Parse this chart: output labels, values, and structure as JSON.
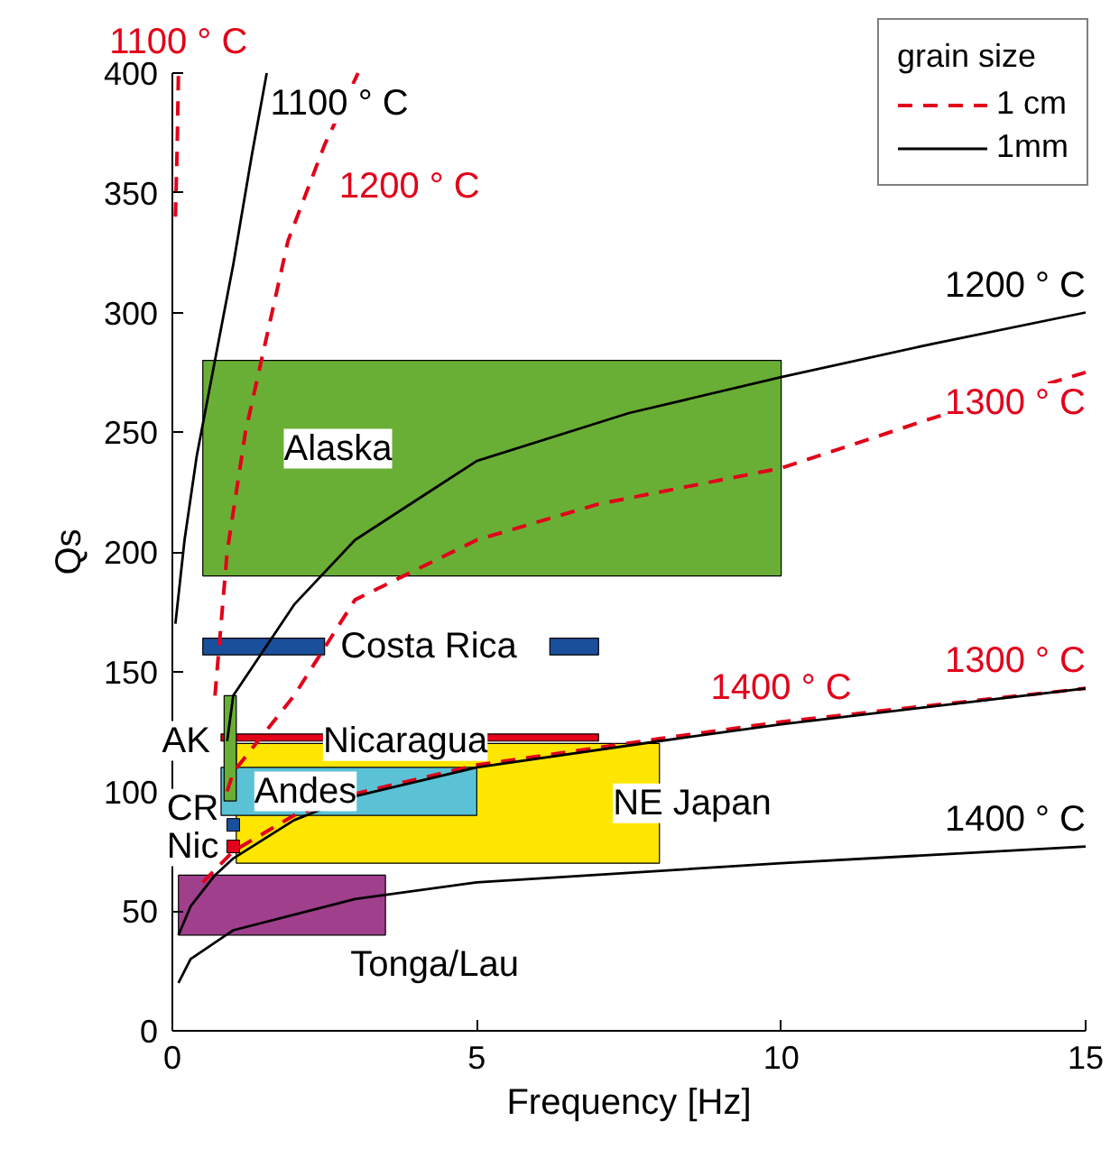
{
  "chart_data": {
    "type": "line",
    "xlabel": "Frequency [Hz]",
    "ylabel": "Qs",
    "xlim": [
      0,
      15
    ],
    "ylim": [
      0,
      400
    ],
    "xticks": [
      0,
      5,
      10,
      15
    ],
    "yticks": [
      0,
      50,
      100,
      150,
      200,
      250,
      300,
      350,
      400
    ],
    "legend": "top right",
    "legend_title": "grain size",
    "marker": "none",
    "series": [
      {
        "type": "area",
        "name": "Alaska",
        "color": "#6aaf35",
        "x": [
          0.5,
          10,
          10,
          0.5
        ],
        "values": [
          280,
          280,
          190,
          190
        ]
      },
      {
        "type": "area",
        "name": "Costa Rica",
        "color": "#1a4f9c",
        "x": [
          0.5,
          2.5,
          2.5,
          0.5
        ],
        "values": [
          164,
          164,
          157,
          157
        ]
      },
      {
        "type": "area",
        "color": "#1a4f9c",
        "x": [
          6.2,
          7,
          7,
          6.2
        ],
        "values": [
          164,
          164,
          157,
          157
        ]
      },
      {
        "type": "area",
        "name": "NE Japan",
        "color": "#ffe600",
        "x": [
          1.05,
          8,
          8,
          1.05
        ],
        "values": [
          120,
          120,
          70,
          70
        ]
      },
      {
        "type": "area",
        "name": "Andes",
        "color": "#5bc2d6",
        "x": [
          0.8,
          5,
          5,
          0.8
        ],
        "values": [
          110,
          110,
          90,
          90
        ]
      },
      {
        "type": "area",
        "name": "Nicaragua",
        "color": "#e2001a",
        "x": [
          0.8,
          7,
          7,
          0.8
        ],
        "values": [
          124,
          124,
          121,
          121
        ]
      },
      {
        "type": "area",
        "name": "Tonga/Lau",
        "color": "#a03f8c",
        "x": [
          0.1,
          3.5,
          3.5,
          0.1
        ],
        "values": [
          65,
          65,
          40,
          40
        ]
      },
      {
        "type": "area",
        "name": "AK",
        "color": "#6aaf35",
        "x": [
          0.85,
          1.05,
          1.05,
          0.85
        ],
        "values": [
          140,
          140,
          96,
          96
        ]
      },
      {
        "type": "scatter",
        "name": "CR",
        "color": "#1a4f9c",
        "marker": "square",
        "x": [
          1.0
        ],
        "values": [
          86
        ]
      },
      {
        "type": "scatter",
        "name": "Nic",
        "color": "#e2001a",
        "marker": "square",
        "x": [
          1.0
        ],
        "values": [
          77
        ]
      },
      {
        "name": "1 cm",
        "color": "#e2001a",
        "line_style": "dashed",
        "x": [
          0.05,
          0.08,
          0.1
        ],
        "values": [
          340,
          370,
          400
        ]
      },
      {
        "color": "#e2001a",
        "line_style": "dashed",
        "x": [
          0.7,
          0.9,
          1.2,
          1.9,
          2.5,
          3.05
        ],
        "values": [
          140,
          200,
          250,
          330,
          370,
          400
        ]
      },
      {
        "color": "#e2001a",
        "line_style": "dashed",
        "x": [
          0.9,
          1,
          2,
          3,
          5,
          7,
          10,
          12.5,
          15
        ],
        "values": [
          100,
          108,
          140,
          180,
          205,
          220,
          235,
          256,
          275
        ]
      },
      {
        "color": "#e2001a",
        "line_style": "dashed",
        "x": [
          0.5,
          1,
          2,
          3,
          5,
          8,
          10,
          15
        ],
        "values": [
          62,
          75,
          90,
          99,
          111,
          122,
          129,
          143
        ]
      },
      {
        "name": "1mm",
        "color": "#000000",
        "line_style": "solid",
        "x": [
          0.05,
          0.2,
          0.4,
          0.7,
          1,
          1.3,
          1.55
        ],
        "values": [
          170,
          205,
          240,
          280,
          320,
          365,
          400
        ]
      },
      {
        "color": "#000000",
        "line_style": "solid",
        "x": [
          0.9,
          1,
          2,
          3,
          5,
          7.5,
          10,
          12.5,
          15
        ],
        "values": [
          121,
          140,
          178,
          205,
          238,
          258,
          273,
          287,
          300
        ]
      },
      {
        "color": "#000000",
        "line_style": "solid",
        "x": [
          0.1,
          0.3,
          0.7,
          1,
          2,
          3,
          5,
          8,
          10,
          15
        ],
        "values": [
          40,
          52,
          65,
          72,
          88,
          98,
          110,
          121,
          128,
          143
        ]
      },
      {
        "color": "#000000",
        "line_style": "solid",
        "x": [
          0.1,
          0.3,
          1,
          3,
          5,
          10,
          15
        ],
        "values": [
          20,
          30,
          42,
          55,
          62,
          70,
          77
        ]
      }
    ],
    "annotations": [
      {
        "text": "1100 ° C",
        "x": 0.1,
        "y": 400
      },
      {
        "text": "1100 ° C",
        "x": 1.55,
        "y": 400
      },
      {
        "text": "1200 ° C",
        "x": 2.5,
        "y": 370
      },
      {
        "text": "1200 ° C",
        "x": 15,
        "y": 300
      },
      {
        "text": "1300 ° C",
        "x": 15,
        "y": 275
      },
      {
        "text": "1400 ° C",
        "x": 10,
        "y": 129
      },
      {
        "text": "1300 ° C",
        "x": 15,
        "y": 143
      },
      {
        "text": "1400 ° C",
        "x": 15,
        "y": 77
      }
    ]
  }
}
